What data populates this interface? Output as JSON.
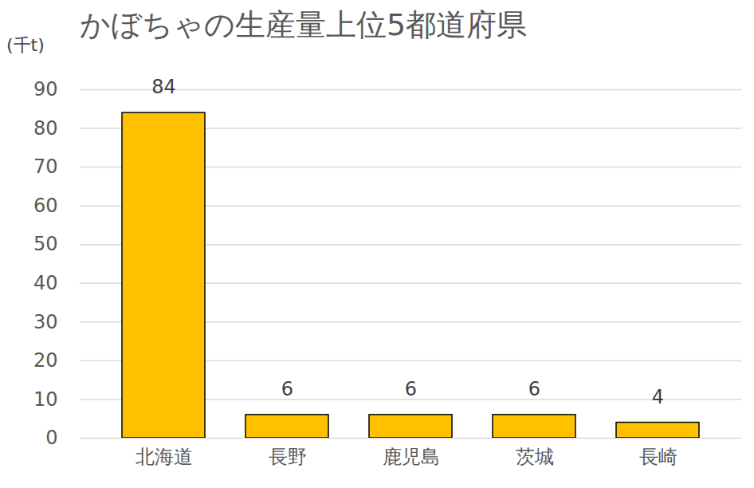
{
  "chart_data": {
    "type": "bar",
    "title": "かぼちゃの生産量上位5都道府県",
    "y_label": "(千t)",
    "categories": [
      "北海道",
      "長野",
      "鹿児島",
      "茨城",
      "長崎"
    ],
    "values": [
      84,
      6,
      6,
      6,
      4
    ],
    "color": "#ffc000",
    "ylim": [
      0,
      90
    ],
    "yticks": [
      0,
      10,
      20,
      30,
      40,
      50,
      60,
      70,
      80,
      90
    ],
    "grid": true,
    "data_labels": true
  }
}
